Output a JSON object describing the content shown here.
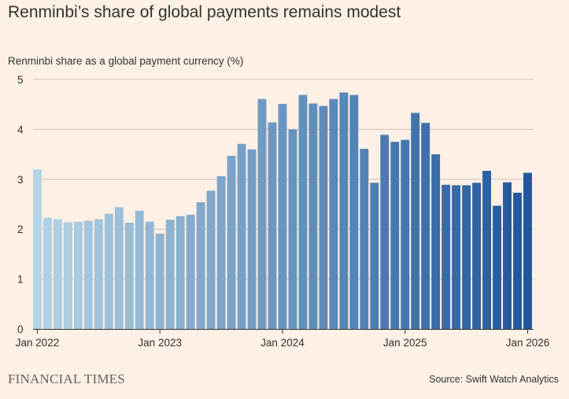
{
  "header": {
    "title": "Renminbi’s share of global payments remains modest",
    "subtitle": "Renminbi share as a global payment currency (%)"
  },
  "footer": {
    "brand": "FINANCIAL TIMES",
    "source": "Source: Swift Watch Analytics"
  },
  "colors": {
    "background": "#fff1e5",
    "bar_start": "#b5d4e6",
    "bar_end": "#1f579c",
    "grid": "#ccc1b7",
    "baseline": "#33302e"
  },
  "chart_data": {
    "type": "bar",
    "title": "Renminbi’s share of global payments remains modest",
    "ylabel": "Renminbi share as a global payment currency (%)",
    "xlabel": "",
    "ylim": [
      0,
      5
    ],
    "yticks": [
      0,
      1,
      2,
      3,
      4,
      5
    ],
    "grid": true,
    "x_tick_labels": [
      "Jan 2022",
      "Jan 2023",
      "Jan 2024",
      "Jan 2025",
      "Jan 2026"
    ],
    "categories": [
      "2022-01",
      "2022-02",
      "2022-03",
      "2022-04",
      "2022-05",
      "2022-06",
      "2022-07",
      "2022-08",
      "2022-09",
      "2022-10",
      "2022-11",
      "2022-12",
      "2023-01",
      "2023-02",
      "2023-03",
      "2023-04",
      "2023-05",
      "2023-06",
      "2023-07",
      "2023-08",
      "2023-09",
      "2023-10",
      "2023-11",
      "2023-12",
      "2024-01",
      "2024-02",
      "2024-03",
      "2024-04",
      "2024-05",
      "2024-06",
      "2024-07",
      "2024-08",
      "2024-09",
      "2024-10",
      "2024-11",
      "2024-12",
      "2025-01",
      "2025-02",
      "2025-03",
      "2025-04",
      "2025-05",
      "2025-06",
      "2025-07",
      "2025-08",
      "2025-09",
      "2025-10",
      "2025-11",
      "2025-12",
      "2026-01"
    ],
    "values": [
      3.2,
      2.23,
      2.2,
      2.14,
      2.15,
      2.17,
      2.2,
      2.31,
      2.44,
      2.13,
      2.37,
      2.15,
      1.91,
      2.19,
      2.26,
      2.29,
      2.54,
      2.77,
      3.06,
      3.47,
      3.71,
      3.6,
      4.61,
      4.14,
      4.51,
      4.0,
      4.69,
      4.52,
      4.47,
      4.61,
      4.74,
      4.69,
      3.61,
      2.93,
      3.89,
      3.75,
      3.79,
      4.33,
      4.13,
      3.5,
      2.89,
      2.88,
      2.88,
      2.93,
      3.17,
      2.47,
      2.94,
      2.73,
      3.13
    ]
  }
}
